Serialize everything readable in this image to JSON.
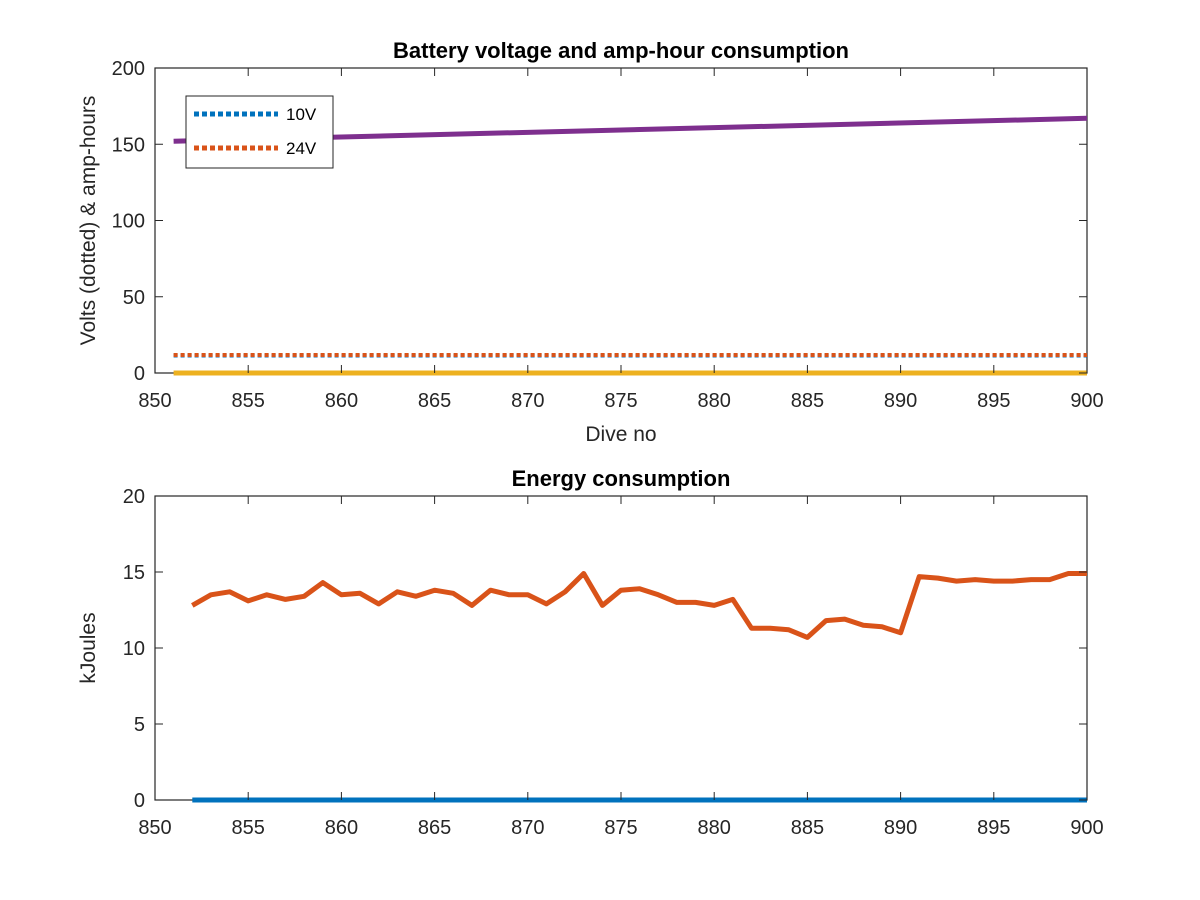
{
  "chart_data": [
    {
      "type": "line",
      "title": "Battery voltage and amp-hour consumption",
      "xlabel": "Dive no",
      "ylabel": "Volts (dotted) & amp-hours",
      "xlim": [
        850,
        900
      ],
      "ylim": [
        0,
        200
      ],
      "xticks": [
        850,
        855,
        860,
        865,
        870,
        875,
        880,
        885,
        890,
        895,
        900
      ],
      "yticks": [
        0,
        50,
        100,
        150,
        200
      ],
      "xtick_labels": [
        "850",
        "855",
        "860",
        "865",
        "870",
        "875",
        "880",
        "885",
        "890",
        "895",
        "900"
      ],
      "ytick_labels": [
        "0",
        "50",
        "100",
        "150",
        "200"
      ],
      "legend_position": "top-left",
      "x": [
        851,
        900
      ],
      "series": [
        {
          "name": "10V",
          "style": "dotted",
          "color": "#0072bd",
          "x": [
            851,
            900
          ],
          "values": [
            11.5,
            11.5
          ]
        },
        {
          "name": "24V",
          "style": "dotted",
          "color": "#d95319",
          "x": [
            851,
            900
          ],
          "values": [
            11.8,
            11.8
          ]
        },
        {
          "style": "solid",
          "color": "#7e2f8e",
          "x": [
            851,
            900
          ],
          "values": [
            152,
            167
          ]
        },
        {
          "style": "solid",
          "color": "#edb120",
          "x": [
            851,
            900
          ],
          "values": [
            0,
            0
          ]
        }
      ]
    },
    {
      "type": "line",
      "title": "Energy consumption",
      "xlabel": "",
      "ylabel": "kJoules",
      "xlim": [
        850,
        900
      ],
      "ylim": [
        0,
        20
      ],
      "xticks": [
        850,
        855,
        860,
        865,
        870,
        875,
        880,
        885,
        890,
        895,
        900
      ],
      "yticks": [
        0,
        5,
        10,
        15,
        20
      ],
      "xtick_labels": [
        "850",
        "855",
        "860",
        "865",
        "870",
        "875",
        "880",
        "885",
        "890",
        "895",
        "900"
      ],
      "ytick_labels": [
        "0",
        "5",
        "10",
        "15",
        "20"
      ],
      "series": [
        {
          "style": "solid",
          "color": "#d95319",
          "x": [
            852,
            853,
            854,
            855,
            856,
            857,
            858,
            859,
            860,
            861,
            862,
            863,
            864,
            865,
            866,
            867,
            868,
            869,
            870,
            871,
            872,
            873,
            874,
            875,
            876,
            877,
            878,
            879,
            880,
            881,
            882,
            883,
            884,
            885,
            886,
            887,
            888,
            889,
            890,
            891,
            892,
            893,
            894,
            895,
            896,
            897,
            898,
            899,
            900
          ],
          "values": [
            12.8,
            13.5,
            13.7,
            13.1,
            13.5,
            13.2,
            13.4,
            14.3,
            13.5,
            13.6,
            12.9,
            13.7,
            13.4,
            13.8,
            13.6,
            12.8,
            13.8,
            13.5,
            13.5,
            12.9,
            13.7,
            14.9,
            12.8,
            13.8,
            13.9,
            13.5,
            13.0,
            13.0,
            12.8,
            13.2,
            11.3,
            11.3,
            11.2,
            10.7,
            11.8,
            11.9,
            11.5,
            11.4,
            11.0,
            14.7,
            14.6,
            14.4,
            14.5,
            14.4,
            14.4,
            14.5,
            14.5,
            14.9,
            14.9
          ]
        },
        {
          "style": "solid",
          "color": "#0072bd",
          "x": [
            852,
            900
          ],
          "values": [
            0,
            0
          ]
        }
      ]
    }
  ]
}
